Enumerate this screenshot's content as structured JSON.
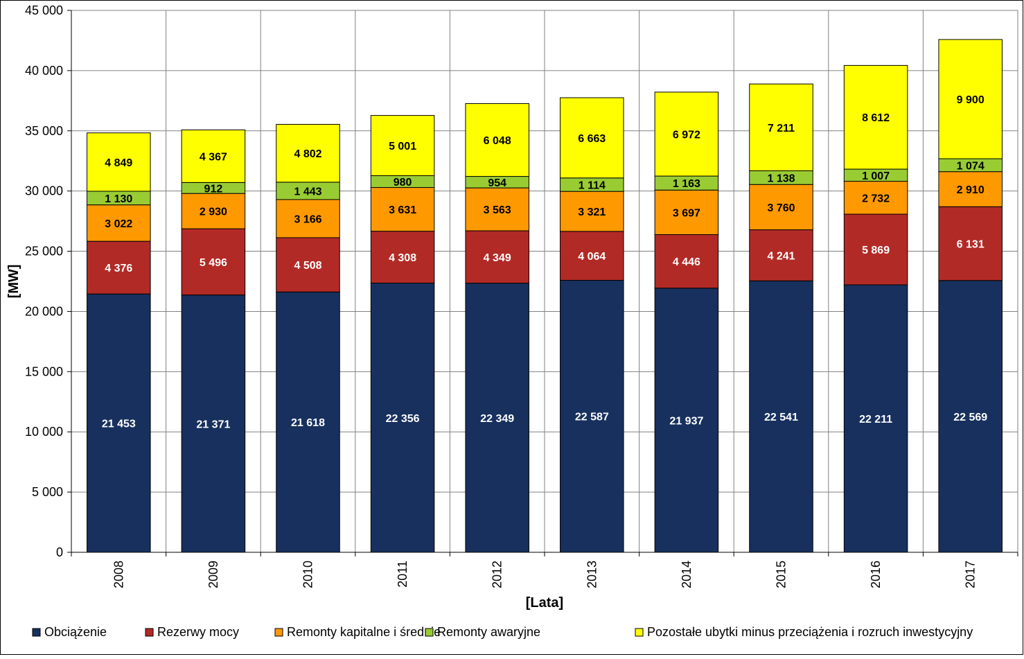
{
  "chart_data": {
    "type": "bar",
    "stacked": true,
    "categories": [
      "2008",
      "2009",
      "2010",
      "2011",
      "2012",
      "2013",
      "2014",
      "2015",
      "2016",
      "2017"
    ],
    "series": [
      {
        "name": "Obciążenie",
        "color": "#17305e",
        "label_color": "#ffffff",
        "values": [
          21453,
          21371,
          21618,
          22356,
          22349,
          22587,
          21937,
          22541,
          22211,
          22569
        ],
        "labels": [
          "21 453",
          "21 371",
          "21 618",
          "22 356",
          "22 349",
          "22 587",
          "21 937",
          "22 541",
          "22 211",
          "22 569"
        ]
      },
      {
        "name": "Rezerwy mocy",
        "color": "#b22a26",
        "label_color": "#ffffff",
        "values": [
          4376,
          5496,
          4508,
          4308,
          4349,
          4064,
          4446,
          4241,
          5869,
          6131
        ],
        "labels": [
          "4 376",
          "5 496",
          "4 508",
          "4 308",
          "4 349",
          "4 064",
          "4 446",
          "4 241",
          "5 869",
          "6 131"
        ]
      },
      {
        "name": "Remonty kapitalne i średnie",
        "color": "#ff9900",
        "label_color": "#000000",
        "values": [
          3022,
          2930,
          3166,
          3631,
          3563,
          3321,
          3697,
          3760,
          2732,
          2910
        ],
        "labels": [
          "3 022",
          "2 930",
          "3 166",
          "3 631",
          "3 563",
          "3 321",
          "3 697",
          "3 760",
          "2 732",
          "2 910"
        ]
      },
      {
        "name": "Remonty awaryjne",
        "color": "#99cc33",
        "label_color": "#000000",
        "values": [
          1130,
          912,
          1443,
          980,
          954,
          1114,
          1163,
          1138,
          1007,
          1074
        ],
        "labels": [
          "1 130",
          "912",
          "1 443",
          "980",
          "954",
          "1 114",
          "1 163",
          "1 138",
          "1 007",
          "1 074"
        ]
      },
      {
        "name": "Pozostałe ubytki minus przeciążenia i rozruch inwestycyjny",
        "color": "#ffff00",
        "label_color": "#000000",
        "values": [
          4849,
          4367,
          4802,
          5001,
          6048,
          6663,
          6972,
          7211,
          8612,
          9900
        ],
        "labels": [
          "4 849",
          "4 367",
          "4 802",
          "5 001",
          "6 048",
          "6 663",
          "6 972",
          "7 211",
          "8 612",
          "9 900"
        ]
      }
    ],
    "xlabel": "[Lata]",
    "ylabel": "[MW]",
    "ylim": [
      0,
      45000
    ],
    "yticks": [
      0,
      5000,
      10000,
      15000,
      20000,
      25000,
      30000,
      35000,
      40000,
      45000
    ],
    "ytick_labels": [
      "0",
      "5 000",
      "10 000",
      "15 000",
      "20 000",
      "25 000",
      "30 000",
      "35 000",
      "40 000",
      "45 000"
    ],
    "grid": true,
    "legend_position": "bottom"
  }
}
